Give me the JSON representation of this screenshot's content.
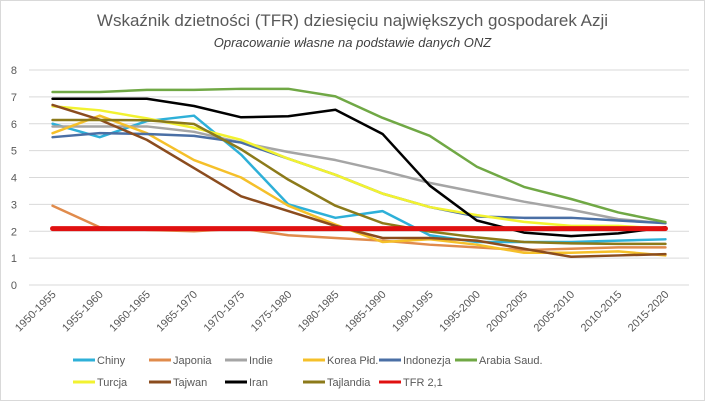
{
  "chart_data": {
    "type": "line",
    "title": "Wskaźnik dzietności (TFR) dziesięciu największych gospodarek Azji",
    "subtitle": "Opracowanie własne na podstawie danych ONZ",
    "xlabel": "",
    "ylabel": "",
    "ylim": [
      0,
      8
    ],
    "yticks": [
      "0",
      "1",
      "2",
      "3",
      "4",
      "5",
      "6",
      "7",
      "8"
    ],
    "grid": true,
    "legend_position": "bottom",
    "categories": [
      "1950-1955",
      "1955-1960",
      "1960-1965",
      "1965-1970",
      "1970-1975",
      "1975-1980",
      "1980-1985",
      "1985-1990",
      "1990-1995",
      "1995-2000",
      "2000-2005",
      "2005-2010",
      "2010-2015",
      "2015-2020"
    ],
    "series": [
      {
        "name": "Chiny",
        "color": "#2eb0d8",
        "width": 2.5,
        "values": [
          6.0,
          5.5,
          6.1,
          6.3,
          4.85,
          3.0,
          2.5,
          2.75,
          1.85,
          1.6,
          1.6,
          1.6,
          1.65,
          1.7
        ]
      },
      {
        "name": "Japonia",
        "color": "#e08b4c",
        "width": 2.5,
        "values": [
          2.95,
          2.15,
          2.05,
          2.0,
          2.1,
          1.85,
          1.75,
          1.65,
          1.5,
          1.4,
          1.3,
          1.35,
          1.4,
          1.4
        ]
      },
      {
        "name": "Indie",
        "color": "#a5a5a5",
        "width": 2.5,
        "values": [
          5.9,
          5.9,
          5.9,
          5.7,
          5.3,
          4.95,
          4.65,
          4.25,
          3.8,
          3.45,
          3.1,
          2.8,
          2.45,
          2.3
        ]
      },
      {
        "name": "Korea Płd.",
        "color": "#f5c02a",
        "width": 2.5,
        "values": [
          5.65,
          6.3,
          5.65,
          4.65,
          4.0,
          2.95,
          2.25,
          1.6,
          1.7,
          1.5,
          1.2,
          1.2,
          1.25,
          1.1
        ]
      },
      {
        "name": "Indonezja",
        "color": "#4a6fa5",
        "width": 2.5,
        "values": [
          5.5,
          5.65,
          5.62,
          5.55,
          5.3,
          4.7,
          4.1,
          3.4,
          2.9,
          2.55,
          2.5,
          2.5,
          2.4,
          2.3
        ]
      },
      {
        "name": "Arabia Saud.",
        "color": "#70a845",
        "width": 2.5,
        "values": [
          7.18,
          7.18,
          7.26,
          7.26,
          7.3,
          7.3,
          7.02,
          6.22,
          5.55,
          4.4,
          3.65,
          3.2,
          2.7,
          2.34
        ]
      },
      {
        "name": "Turcja",
        "color": "#f2f230",
        "width": 2.5,
        "values": [
          6.65,
          6.5,
          6.2,
          5.85,
          5.4,
          4.7,
          4.1,
          3.4,
          2.9,
          2.6,
          2.35,
          2.2,
          2.2,
          2.1
        ]
      },
      {
        "name": "Tajwan",
        "color": "#8b4c1e",
        "width": 2.5,
        "values": [
          6.7,
          6.15,
          5.4,
          4.35,
          3.3,
          2.75,
          2.2,
          1.75,
          1.75,
          1.65,
          1.35,
          1.05,
          1.1,
          1.15
        ]
      },
      {
        "name": "Iran",
        "color": "#000000",
        "width": 2.5,
        "values": [
          6.93,
          6.93,
          6.93,
          6.66,
          6.24,
          6.28,
          6.52,
          5.62,
          3.7,
          2.4,
          1.95,
          1.82,
          1.92,
          2.15
        ]
      },
      {
        "name": "Tajlandia",
        "color": "#8c7a1a",
        "width": 2.5,
        "values": [
          6.14,
          6.14,
          6.13,
          5.99,
          5.05,
          3.92,
          2.95,
          2.3,
          1.99,
          1.77,
          1.6,
          1.55,
          1.53,
          1.53
        ]
      },
      {
        "name": "TFR 2,1",
        "color": "#e01010",
        "width": 5,
        "values": [
          2.1,
          2.1,
          2.1,
          2.1,
          2.1,
          2.1,
          2.1,
          2.1,
          2.1,
          2.1,
          2.1,
          2.1,
          2.1,
          2.1
        ]
      }
    ]
  }
}
